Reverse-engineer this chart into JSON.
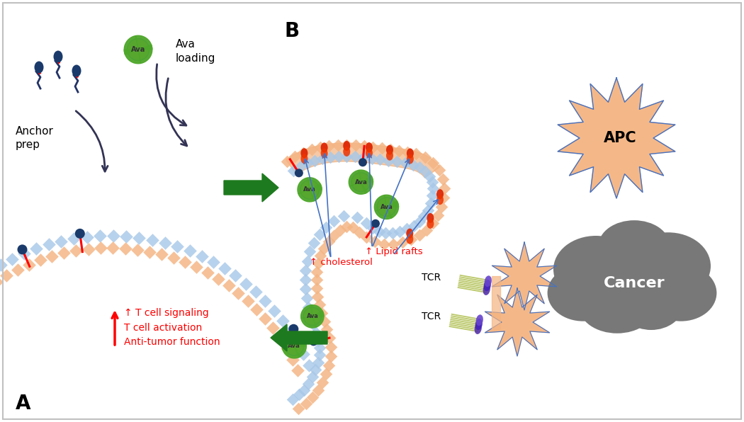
{
  "bg_color": "#ffffff",
  "border_color": "#c0c0c0",
  "label_A": "A",
  "label_B": "B",
  "label_anchor": "Anchor\nprep",
  "label_ava_loading": "Ava\nloading",
  "label_cholesterol": "↑ cholesterol",
  "label_lipid_rafts": "↑ Lipid rafts",
  "label_tcell_signaling": "↑ T cell signaling\nT cell activation\nAnti-tumor function",
  "label_TCR1": "TCR",
  "label_TCR2": "TCR",
  "label_APC": "APC",
  "label_Cancer": "Cancer",
  "label_Ava": "Ava",
  "color_blue_dark": "#1a3a6b",
  "color_blue_medium": "#4472c4",
  "color_blue_light": "#a8c8e8",
  "color_orange_light": "#f4b482",
  "color_orange_raft": "#f0a060",
  "color_red": "#ff0000",
  "color_red_dot": "#cc2200",
  "color_green": "#4ea72a",
  "color_green_arrow": "#1e7a1e",
  "color_gray_cancer": "#808080",
  "color_arrow_dark": "#333355"
}
